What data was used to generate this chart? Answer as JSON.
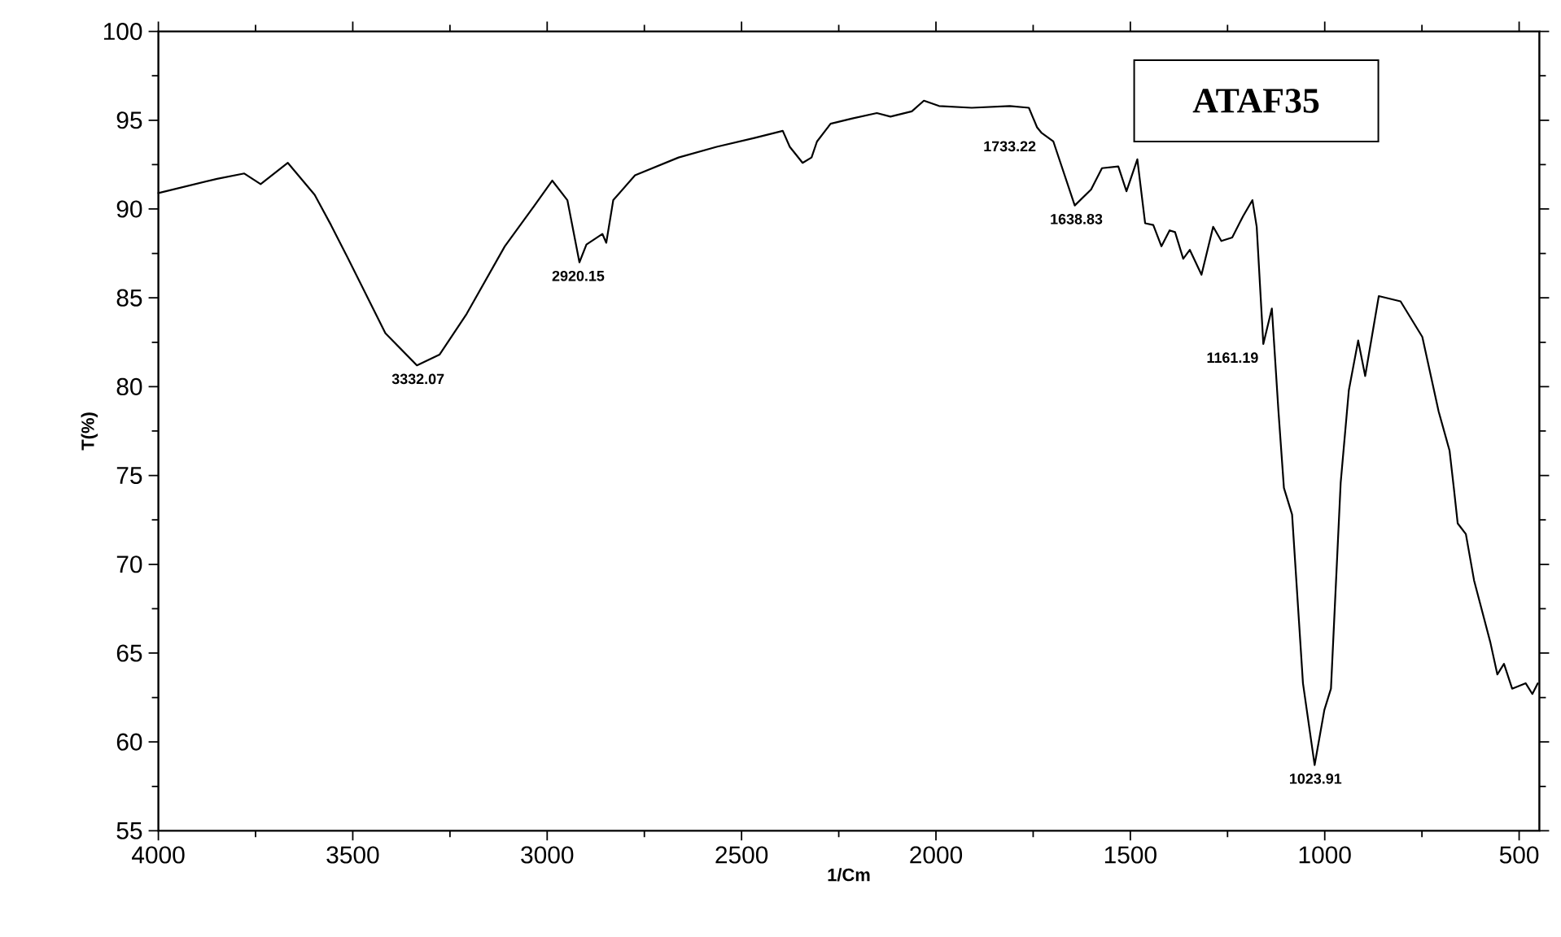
{
  "chart_data": {
    "type": "line",
    "title": "ATAF35",
    "xlabel": "1/Cm",
    "ylabel": "T(%)",
    "xlim": [
      4000,
      448
    ],
    "ylim": [
      55,
      100
    ],
    "xticks": [
      4000,
      3500,
      3000,
      2500,
      2000,
      1500,
      1000,
      500
    ],
    "yticks": [
      55,
      60,
      65,
      70,
      75,
      80,
      85,
      90,
      95,
      100
    ],
    "grid": false,
    "marker": "none",
    "line_style": "solid",
    "series": [
      {
        "color": "#000000",
        "x": [
          4000,
          3849,
          3779,
          3737,
          3667,
          3598,
          3556,
          3514,
          3416,
          3335,
          3277,
          3207,
          3109,
          3039,
          2987,
          2948,
          2917,
          2899,
          2858,
          2848,
          2830,
          2774,
          2662,
          2564,
          2467,
          2394,
          2376,
          2343,
          2320,
          2306,
          2271,
          2215,
          2152,
          2117,
          2062,
          2031,
          1992,
          1908,
          1810,
          1761,
          1740,
          1729,
          1698,
          1643,
          1601,
          1573,
          1531,
          1510,
          1482,
          1462,
          1441,
          1420,
          1399,
          1385,
          1364,
          1347,
          1317,
          1287,
          1266,
          1238,
          1210,
          1186,
          1175,
          1158,
          1136,
          1119,
          1105,
          1084,
          1056,
          1026,
          1001,
          984,
          959,
          938,
          914,
          896,
          861,
          805,
          749,
          707,
          679,
          668,
          658,
          637,
          616,
          574,
          556,
          539,
          518,
          483,
          466,
          452
        ],
        "values": [
          90.9,
          91.7,
          92.0,
          91.4,
          92.6,
          90.8,
          89.1,
          87.3,
          83.0,
          81.2,
          81.8,
          84.1,
          87.9,
          90.0,
          91.6,
          90.5,
          87.0,
          88.0,
          88.6,
          88.1,
          90.5,
          91.9,
          92.9,
          93.5,
          94.0,
          94.4,
          93.5,
          92.6,
          92.9,
          93.8,
          94.8,
          95.1,
          95.4,
          95.2,
          95.5,
          96.1,
          95.8,
          95.7,
          95.8,
          95.7,
          94.6,
          94.3,
          93.8,
          90.2,
          91.1,
          92.3,
          92.4,
          91.0,
          92.8,
          89.2,
          89.1,
          87.9,
          88.8,
          88.7,
          87.2,
          87.7,
          86.3,
          89.0,
          88.2,
          88.4,
          89.6,
          90.5,
          89.0,
          82.4,
          84.4,
          78.6,
          74.3,
          72.8,
          63.3,
          58.7,
          61.8,
          63.0,
          74.6,
          79.8,
          82.6,
          80.6,
          85.1,
          84.8,
          82.8,
          78.6,
          76.4,
          74.3,
          72.3,
          71.7,
          69.1,
          65.6,
          63.8,
          64.4,
          63.0,
          63.3,
          62.7,
          63.3
        ]
      }
    ],
    "annotations": [
      {
        "text": "3332.07",
        "x": 3332.07,
        "y": 81.2
      },
      {
        "text": "2920.15",
        "x": 2920.15,
        "y": 87.0
      },
      {
        "text": "1733.22",
        "x": 1733.22,
        "y": 94.3
      },
      {
        "text": "1638.83",
        "x": 1638.83,
        "y": 90.2
      },
      {
        "text": "1161.19",
        "x": 1161.19,
        "y": 82.4
      },
      {
        "text": "1023.91",
        "x": 1023.91,
        "y": 58.7
      }
    ]
  }
}
